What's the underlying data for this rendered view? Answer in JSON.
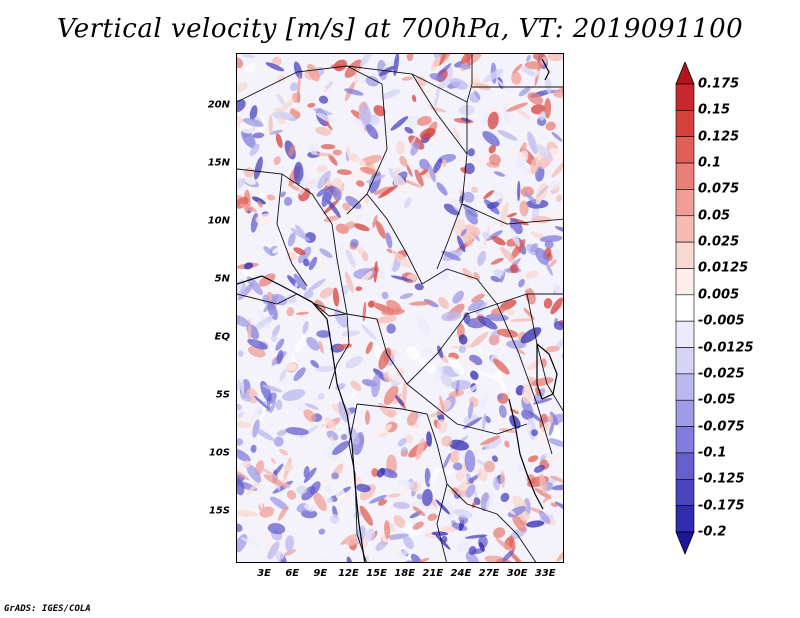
{
  "title": "Vertical velocity [m/s] at 700hPa, VT: 2019091100",
  "credit": "GrADS: IGES/COLA",
  "map": {
    "lat_range": [
      -19.5,
      24.5
    ],
    "lon_range": [
      0,
      35
    ],
    "lat_labels": [
      {
        "value": 20,
        "text": "20N"
      },
      {
        "value": 15,
        "text": "15N"
      },
      {
        "value": 10,
        "text": "10N"
      },
      {
        "value": 5,
        "text": "5N"
      },
      {
        "value": 0,
        "text": "EQ"
      },
      {
        "value": -5,
        "text": "5S"
      },
      {
        "value": -10,
        "text": "10S"
      },
      {
        "value": -15,
        "text": "15S"
      }
    ],
    "lon_labels": [
      {
        "value": 3,
        "text": "3E"
      },
      {
        "value": 6,
        "text": "6E"
      },
      {
        "value": 9,
        "text": "9E"
      },
      {
        "value": 12,
        "text": "12E"
      },
      {
        "value": 15,
        "text": "15E"
      },
      {
        "value": 18,
        "text": "18E"
      },
      {
        "value": 21,
        "text": "21E"
      },
      {
        "value": 24,
        "text": "24E"
      },
      {
        "value": 27,
        "text": "27E"
      },
      {
        "value": 30,
        "text": "30E"
      },
      {
        "value": 33,
        "text": "33E"
      }
    ]
  },
  "colorbar": {
    "levels": [
      "0.175",
      "0.15",
      "0.125",
      "0.1",
      "0.075",
      "0.05",
      "0.025",
      "0.0125",
      "0.005",
      "-0.005",
      "-0.0125",
      "-0.025",
      "-0.05",
      "-0.075",
      "-0.1",
      "-0.125",
      "-0.175",
      "-0.2"
    ],
    "colors": [
      "#b4141e",
      "#c8282d",
      "#d7413c",
      "#e05f56",
      "#e98077",
      "#f09f96",
      "#f6bcb4",
      "#fad8d2",
      "#fdeeeb",
      "#ffffff",
      "#ecebfb",
      "#d6d4f6",
      "#bbb8ef",
      "#9f9be6",
      "#827cdb",
      "#6660cf",
      "#4a44c0",
      "#2f2aae",
      "#1c1798"
    ]
  }
}
